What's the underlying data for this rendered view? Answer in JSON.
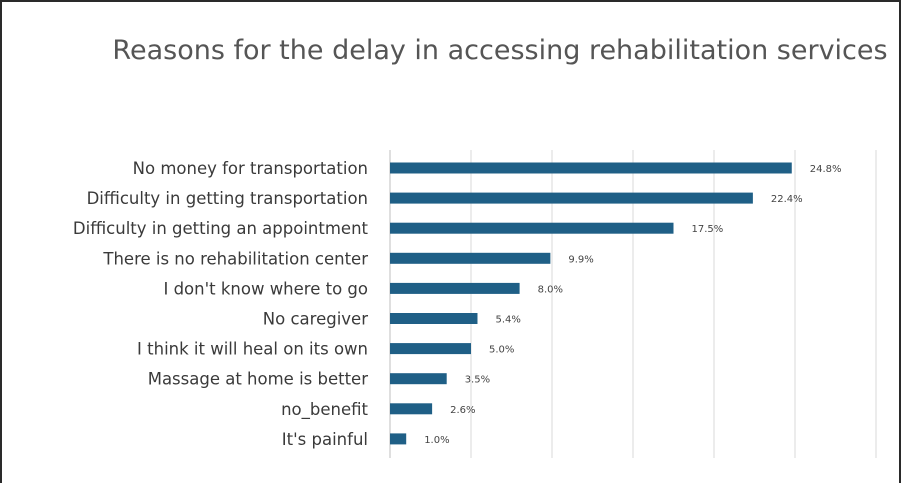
{
  "chart_data": {
    "type": "bar",
    "orientation": "horizontal",
    "title": "Reasons for the delay in accessing rehabilitation services",
    "categories": [
      "No money for transportation",
      "Difficulty in getting transportation",
      "Difficulty in getting an appointment",
      "There is no rehabilitation center",
      "I don't know where to go",
      "No caregiver",
      "I think it will heal on its own",
      "Massage at home is better",
      "no_benefit",
      "It's painful"
    ],
    "values": [
      24.8,
      22.4,
      17.5,
      9.9,
      8.0,
      5.4,
      5.0,
      3.5,
      2.6,
      1.0
    ],
    "value_labels": [
      "24.8%",
      "22.4%",
      "17.5%",
      "9.9%",
      "8.0%",
      "5.4%",
      "5.0%",
      "3.5%",
      "2.6%",
      "1.0%"
    ],
    "xlim": [
      0,
      30
    ],
    "grid": "vertical",
    "bar_color": "#1f5f86",
    "xlabel": "",
    "ylabel": ""
  }
}
